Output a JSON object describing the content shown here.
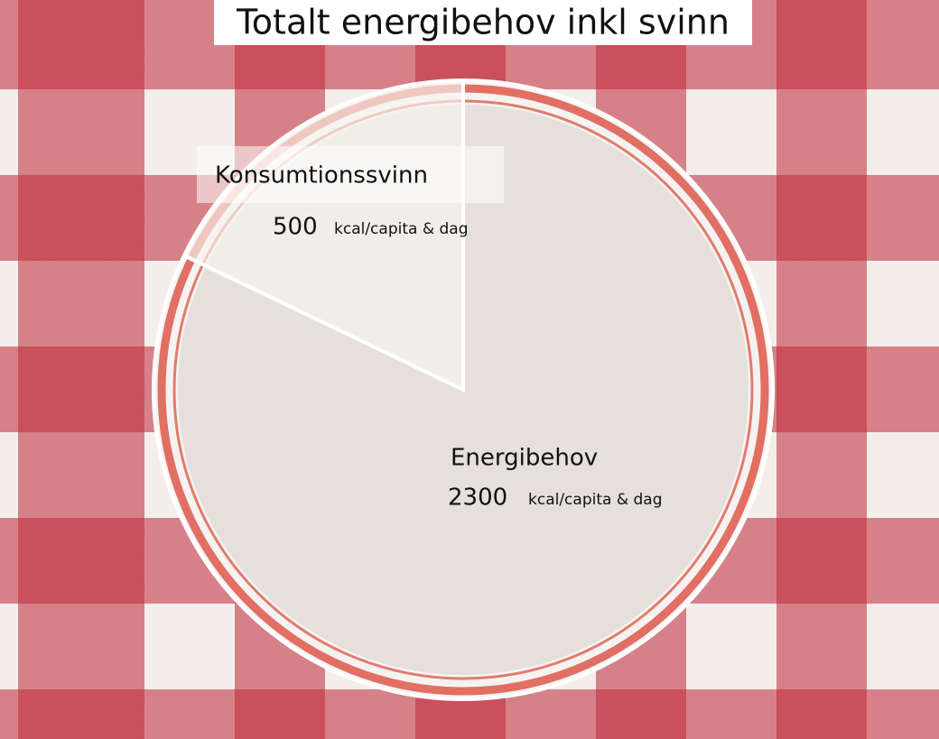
{
  "chart_data": {
    "type": "pie",
    "title": "Totalt energibehov inkl svinn",
    "categories": [
      "Konsumtionssvinn",
      "Energibehov"
    ],
    "values": [
      500,
      2300
    ],
    "unit": "kcal/capita & dag",
    "colors": [
      "#f4f1ee",
      "#e4dfda"
    ]
  }
}
